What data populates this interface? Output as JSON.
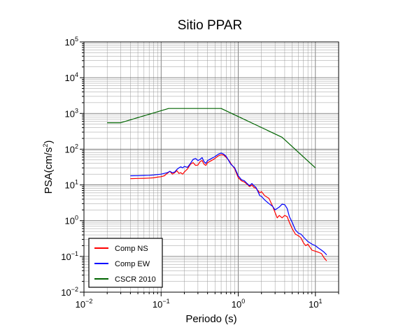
{
  "chart_data": {
    "type": "line",
    "title": "Sitio PPAR",
    "xlabel": "Periodo (s)",
    "ylabel": "PSA(cm/s2)",
    "ylabel_base": "PSA(cm/s",
    "ylabel_sup": "2",
    "ylabel_end": ")",
    "x_scale": "log",
    "y_scale": "log",
    "xlim": [
      0.01,
      20
    ],
    "ylim": [
      0.01,
      100000
    ],
    "grid": true,
    "legend_position": "bottom-left",
    "x_ticks": [
      {
        "value": 0.01,
        "base": "10",
        "exp": "−2"
      },
      {
        "value": 0.1,
        "base": "10",
        "exp": "−1"
      },
      {
        "value": 1,
        "base": "10",
        "exp": "0"
      },
      {
        "value": 10,
        "base": "10",
        "exp": "1"
      }
    ],
    "y_ticks": [
      {
        "value": 0.01,
        "base": "10",
        "exp": "−2"
      },
      {
        "value": 0.1,
        "base": "10",
        "exp": "−1"
      },
      {
        "value": 1,
        "base": "10",
        "exp": "0"
      },
      {
        "value": 10,
        "base": "10",
        "exp": "1"
      },
      {
        "value": 100,
        "base": "10",
        "exp": "2"
      },
      {
        "value": 1000,
        "base": "10",
        "exp": "3"
      },
      {
        "value": 10000,
        "base": "10",
        "exp": "4"
      },
      {
        "value": 100000,
        "base": "10",
        "exp": "5"
      }
    ],
    "series": [
      {
        "name": "Comp NS",
        "color": "#ff0000",
        "points": [
          [
            0.04,
            15
          ],
          [
            0.05,
            15.2
          ],
          [
            0.06,
            15.3
          ],
          [
            0.07,
            15.5
          ],
          [
            0.08,
            15.8
          ],
          [
            0.09,
            16.5
          ],
          [
            0.1,
            17
          ],
          [
            0.11,
            18
          ],
          [
            0.12,
            21
          ],
          [
            0.13,
            24
          ],
          [
            0.14,
            20
          ],
          [
            0.15,
            22
          ],
          [
            0.16,
            25
          ],
          [
            0.17,
            21
          ],
          [
            0.18,
            22
          ],
          [
            0.19,
            20
          ],
          [
            0.2,
            23
          ],
          [
            0.22,
            28
          ],
          [
            0.24,
            38
          ],
          [
            0.26,
            42
          ],
          [
            0.28,
            35
          ],
          [
            0.3,
            36
          ],
          [
            0.32,
            45
          ],
          [
            0.34,
            48
          ],
          [
            0.36,
            38
          ],
          [
            0.38,
            35
          ],
          [
            0.4,
            42
          ],
          [
            0.45,
            48
          ],
          [
            0.5,
            55
          ],
          [
            0.55,
            65
          ],
          [
            0.6,
            70
          ],
          [
            0.65,
            68
          ],
          [
            0.7,
            58
          ],
          [
            0.75,
            50
          ],
          [
            0.8,
            40
          ],
          [
            0.9,
            28
          ],
          [
            1,
            16
          ],
          [
            1.1,
            13
          ],
          [
            1.2,
            12
          ],
          [
            1.3,
            10.5
          ],
          [
            1.4,
            9
          ],
          [
            1.5,
            10
          ],
          [
            1.6,
            8.5
          ],
          [
            1.7,
            8
          ],
          [
            1.8,
            7
          ],
          [
            1.9,
            6
          ],
          [
            2,
            6.5
          ],
          [
            2.2,
            5
          ],
          [
            2.5,
            4.2
          ],
          [
            2.8,
            2.5
          ],
          [
            3,
            1.7
          ],
          [
            3.2,
            1.2
          ],
          [
            3.4,
            1.4
          ],
          [
            3.7,
            1.2
          ],
          [
            4,
            1.4
          ],
          [
            4.3,
            1.3
          ],
          [
            4.6,
            0.9
          ],
          [
            5,
            0.6
          ],
          [
            5.5,
            0.42
          ],
          [
            6,
            0.38
          ],
          [
            6.5,
            0.33
          ],
          [
            7,
            0.24
          ],
          [
            7.5,
            0.2
          ],
          [
            8,
            0.22
          ],
          [
            8.5,
            0.18
          ],
          [
            9,
            0.15
          ],
          [
            10,
            0.14
          ],
          [
            11,
            0.13
          ],
          [
            12,
            0.12
          ],
          [
            13,
            0.09
          ],
          [
            14,
            0.075
          ]
        ]
      },
      {
        "name": "Comp EW",
        "color": "#0000ff",
        "points": [
          [
            0.04,
            18
          ],
          [
            0.05,
            18.2
          ],
          [
            0.06,
            18.4
          ],
          [
            0.07,
            18.6
          ],
          [
            0.08,
            19
          ],
          [
            0.09,
            19.5
          ],
          [
            0.1,
            20
          ],
          [
            0.11,
            21
          ],
          [
            0.12,
            22
          ],
          [
            0.13,
            24
          ],
          [
            0.14,
            22
          ],
          [
            0.15,
            23
          ],
          [
            0.16,
            27
          ],
          [
            0.17,
            30
          ],
          [
            0.18,
            32
          ],
          [
            0.19,
            30
          ],
          [
            0.2,
            33
          ],
          [
            0.22,
            31
          ],
          [
            0.24,
            40
          ],
          [
            0.26,
            52
          ],
          [
            0.28,
            55
          ],
          [
            0.3,
            48
          ],
          [
            0.32,
            52
          ],
          [
            0.34,
            58
          ],
          [
            0.36,
            45
          ],
          [
            0.38,
            40
          ],
          [
            0.4,
            48
          ],
          [
            0.45,
            55
          ],
          [
            0.5,
            62
          ],
          [
            0.55,
            72
          ],
          [
            0.6,
            78
          ],
          [
            0.65,
            72
          ],
          [
            0.7,
            62
          ],
          [
            0.75,
            48
          ],
          [
            0.8,
            38
          ],
          [
            0.9,
            30
          ],
          [
            1,
            18
          ],
          [
            1.1,
            14
          ],
          [
            1.2,
            13
          ],
          [
            1.3,
            11
          ],
          [
            1.4,
            9.5
          ],
          [
            1.5,
            11
          ],
          [
            1.6,
            9.5
          ],
          [
            1.7,
            8.5
          ],
          [
            1.8,
            6.5
          ],
          [
            1.9,
            5
          ],
          [
            2,
            4.8
          ],
          [
            2.2,
            3.8
          ],
          [
            2.5,
            3
          ],
          [
            2.8,
            2.5
          ],
          [
            3,
            2
          ],
          [
            3.2,
            2.2
          ],
          [
            3.4,
            2.4
          ],
          [
            3.7,
            2.9
          ],
          [
            4,
            2.8
          ],
          [
            4.3,
            2.2
          ],
          [
            4.6,
            1.3
          ],
          [
            5,
            0.9
          ],
          [
            5.5,
            0.55
          ],
          [
            6,
            0.45
          ],
          [
            6.5,
            0.42
          ],
          [
            7,
            0.35
          ],
          [
            7.5,
            0.3
          ],
          [
            8,
            0.26
          ],
          [
            8.5,
            0.24
          ],
          [
            9,
            0.22
          ],
          [
            10,
            0.2
          ],
          [
            11,
            0.17
          ],
          [
            12,
            0.15
          ],
          [
            13,
            0.13
          ],
          [
            14,
            0.11
          ]
        ]
      },
      {
        "name": "CSCR 2010",
        "color": "#006400",
        "points": [
          [
            0.02,
            550
          ],
          [
            0.03,
            550
          ],
          [
            0.125,
            1375
          ],
          [
            0.6,
            1375
          ],
          [
            3.7,
            215
          ],
          [
            10,
            30
          ]
        ]
      }
    ]
  }
}
